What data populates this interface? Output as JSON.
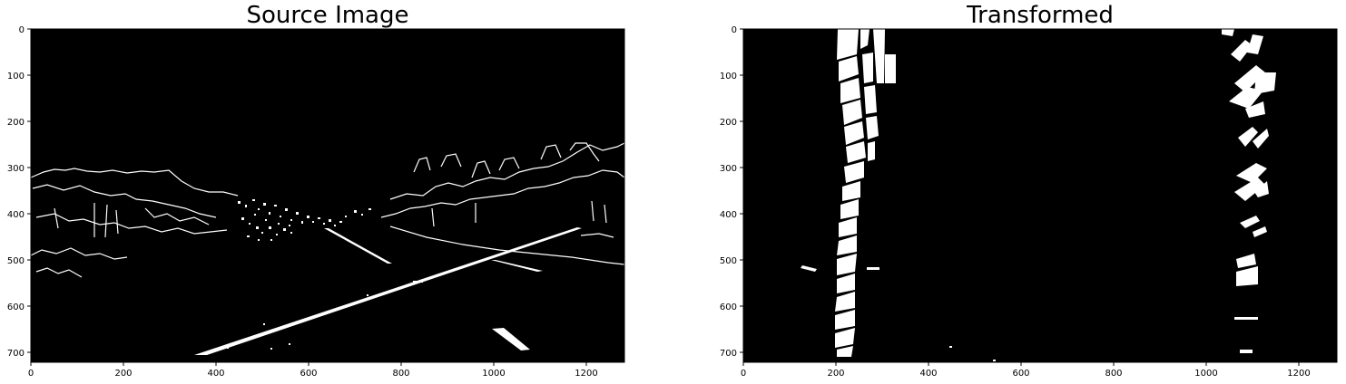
{
  "panels": [
    {
      "title": "Source Image",
      "x_ticks": [
        "0",
        "200",
        "400",
        "600",
        "800",
        "1000",
        "1200"
      ],
      "y_ticks": [
        "0",
        "100",
        "200",
        "300",
        "400",
        "500",
        "600",
        "700"
      ]
    },
    {
      "title": "Transformed",
      "x_ticks": [
        "0",
        "200",
        "400",
        "600",
        "800",
        "1000",
        "1200"
      ],
      "y_ticks": [
        "0",
        "100",
        "200",
        "300",
        "400",
        "500",
        "600",
        "700"
      ]
    }
  ],
  "colors": {
    "background": "#000000",
    "edges": "#ffffff",
    "axis": "#000000"
  }
}
